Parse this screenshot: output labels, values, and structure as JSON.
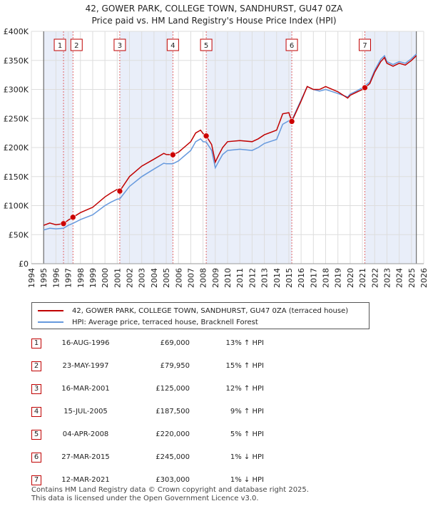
{
  "title": {
    "line1": "42, GOWER PARK, COLLEGE TOWN, SANDHURST, GU47 0ZA",
    "line2": "Price paid vs. HM Land Registry's House Price Index (HPI)"
  },
  "chart_data": {
    "type": "line",
    "ylim": [
      0,
      400000
    ],
    "xlim": [
      1994,
      2026
    ],
    "y_ticks": [
      {
        "v": 0,
        "label": "£0"
      },
      {
        "v": 50000,
        "label": "£50K"
      },
      {
        "v": 100000,
        "label": "£100K"
      },
      {
        "v": 150000,
        "label": "£150K"
      },
      {
        "v": 200000,
        "label": "£200K"
      },
      {
        "v": 250000,
        "label": "£250K"
      },
      {
        "v": 300000,
        "label": "£300K"
      },
      {
        "v": 350000,
        "label": "£350K"
      },
      {
        "v": 400000,
        "label": "£400K"
      }
    ],
    "x_ticks": [
      "1994",
      "1995",
      "1996",
      "1997",
      "1998",
      "1999",
      "2000",
      "2001",
      "2002",
      "2003",
      "2004",
      "2005",
      "2006",
      "2007",
      "2008",
      "2009",
      "2010",
      "2011",
      "2012",
      "2013",
      "2014",
      "2015",
      "2016",
      "2017",
      "2018",
      "2019",
      "2020",
      "2021",
      "2022",
      "2023",
      "2024",
      "2025",
      "2026"
    ],
    "series": [
      {
        "name": "42, GOWER PARK, COLLEGE TOWN, SANDHURST, GU47 0ZA (terraced house)",
        "color": "#c00000",
        "x": [
          1995.0,
          1995.5,
          1996.0,
          1996.62,
          1997.0,
          1997.39,
          1998.0,
          1999.0,
          2000.0,
          2000.5,
          2001.0,
          2001.21,
          2002.0,
          2003.0,
          2004.0,
          2004.8,
          2005.0,
          2005.54,
          2006.0,
          2007.0,
          2007.4,
          2007.8,
          2008.0,
          2008.26,
          2008.7,
          2009.0,
          2009.3,
          2009.6,
          2010.0,
          2011.0,
          2012.0,
          2012.5,
          2013.0,
          2014.0,
          2014.5,
          2015.0,
          2015.24,
          2016.0,
          2016.5,
          2017.0,
          2017.5,
          2018.0,
          2019.0,
          2019.8,
          2020.0,
          2020.5,
          2021.0,
          2021.2,
          2021.6,
          2022.0,
          2022.5,
          2022.8,
          2023.0,
          2023.5,
          2024.0,
          2024.5,
          2025.0,
          2025.4
        ],
        "values": [
          66000,
          70000,
          67000,
          69000,
          75000,
          79950,
          88000,
          97000,
          115000,
          122000,
          128000,
          125000,
          150000,
          168000,
          180000,
          190000,
          188000,
          187500,
          192000,
          210000,
          225000,
          230000,
          224000,
          220000,
          205000,
          175000,
          188000,
          200000,
          210000,
          212000,
          210000,
          215000,
          222000,
          230000,
          258000,
          260000,
          245000,
          280000,
          305000,
          300000,
          300000,
          305000,
          296000,
          285000,
          290000,
          295000,
          300000,
          303000,
          310000,
          330000,
          348000,
          355000,
          345000,
          340000,
          345000,
          342000,
          350000,
          358000
        ]
      },
      {
        "name": "HPI: Average price, terraced house, Bracknell Forest",
        "color": "#6699dd",
        "x": [
          1995.0,
          1995.5,
          1996.0,
          1996.62,
          1997.0,
          1997.39,
          1998.0,
          1999.0,
          2000.0,
          2000.5,
          2001.0,
          2001.21,
          2002.0,
          2003.0,
          2004.0,
          2004.8,
          2005.0,
          2005.54,
          2006.0,
          2007.0,
          2007.4,
          2007.8,
          2008.0,
          2008.26,
          2008.7,
          2009.0,
          2009.3,
          2009.6,
          2010.0,
          2011.0,
          2012.0,
          2012.5,
          2013.0,
          2014.0,
          2014.5,
          2015.0,
          2015.24,
          2016.0,
          2016.5,
          2017.0,
          2017.5,
          2018.0,
          2019.0,
          2019.8,
          2020.0,
          2020.5,
          2021.0,
          2021.2,
          2021.6,
          2022.0,
          2022.5,
          2022.8,
          2023.0,
          2023.5,
          2024.0,
          2024.5,
          2025.0,
          2025.4
        ],
        "values": [
          58000,
          61000,
          60000,
          61000,
          66000,
          69500,
          76000,
          84000,
          100000,
          106000,
          111000,
          111600,
          133000,
          150000,
          163000,
          173000,
          172000,
          172000,
          177000,
          195000,
          210000,
          215000,
          210000,
          209500,
          195000,
          165000,
          177000,
          188000,
          195000,
          197000,
          195000,
          200000,
          207000,
          214000,
          240000,
          246000,
          247000,
          282000,
          305000,
          300000,
          297000,
          300000,
          293000,
          287000,
          292000,
          297000,
          303000,
          306000,
          313000,
          333000,
          352000,
          358000,
          348000,
          343000,
          348000,
          345000,
          353000,
          361000
        ]
      }
    ],
    "sales": [
      {
        "num": "1",
        "date": "16-AUG-1996",
        "x": 1996.62,
        "price": 69000,
        "price_label": "£69,000",
        "hpi": "13% ↑ HPI"
      },
      {
        "num": "2",
        "date": "23-MAY-1997",
        "x": 1997.39,
        "price": 79950,
        "price_label": "£79,950",
        "hpi": "15% ↑ HPI"
      },
      {
        "num": "3",
        "date": "16-MAR-2001",
        "x": 2001.21,
        "price": 125000,
        "price_label": "£125,000",
        "hpi": "12% ↑ HPI"
      },
      {
        "num": "4",
        "date": "15-JUL-2005",
        "x": 2005.54,
        "price": 187500,
        "price_label": "£187,500",
        "hpi": "9% ↑ HPI"
      },
      {
        "num": "5",
        "date": "04-APR-2008",
        "x": 2008.26,
        "price": 220000,
        "price_label": "£220,000",
        "hpi": "5% ↑ HPI"
      },
      {
        "num": "6",
        "date": "27-MAR-2015",
        "x": 2015.24,
        "price": 245000,
        "price_label": "£245,000",
        "hpi": "1% ↓ HPI"
      },
      {
        "num": "7",
        "date": "12-MAR-2021",
        "x": 2021.2,
        "price": 303000,
        "price_label": "£303,000",
        "hpi": "1% ↓ HPI"
      }
    ],
    "shaded_regions": [
      [
        1995.0,
        1997.39
      ],
      [
        2001.21,
        2005.54
      ],
      [
        2008.26,
        2015.24
      ],
      [
        2021.2,
        2025.4
      ]
    ],
    "data_start": 1995.0,
    "data_end": 2025.4
  },
  "legend": {
    "property_label": "42, GOWER PARK, COLLEGE TOWN, SANDHURST, GU47 0ZA (terraced house)",
    "hpi_label": "HPI: Average price, terraced house, Bracknell Forest"
  },
  "footer": {
    "line1": "Contains HM Land Registry data © Crown copyright and database right 2025.",
    "line2": "This data is licensed under the Open Government Licence v3.0."
  }
}
